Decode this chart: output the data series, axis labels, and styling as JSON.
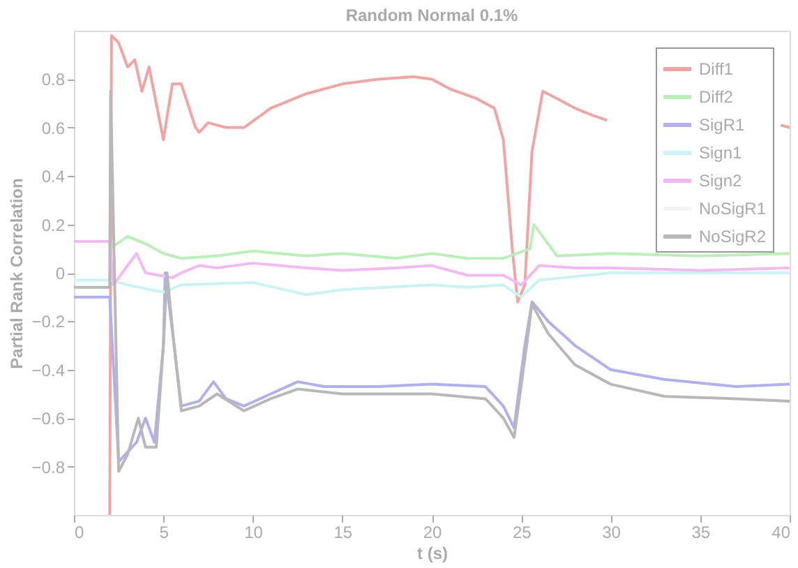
{
  "chart_data": {
    "type": "line",
    "title": "Random Normal 0.1%",
    "xlabel": "t (s)",
    "ylabel": "Partial Rank Correlation",
    "xlim": [
      0,
      40
    ],
    "xticks": [
      0,
      5,
      10,
      15,
      20,
      25,
      30,
      35,
      40
    ],
    "ylim": [
      -1,
      1
    ],
    "yticks": [
      -0.8,
      -0.6,
      -0.4,
      -0.2,
      0,
      0.2,
      0.4,
      0.6,
      0.8
    ],
    "grid": false,
    "legend": "top right",
    "line_style": "solid",
    "marker": "none",
    "series": [
      {
        "name": "Diff1",
        "color": "#f4a3a3",
        "x": [
          2,
          2.1,
          2.5,
          3,
          3.4,
          3.8,
          4.2,
          4.6,
          5,
          5.5,
          6,
          6.8,
          7,
          7.5,
          8.5,
          9.5,
          11,
          13,
          15,
          17,
          19,
          20,
          21,
          22.5,
          23.5,
          24,
          24.5,
          24.8,
          25.2,
          25.6,
          26.2,
          27,
          28,
          29,
          29.8,
          35,
          39.5,
          40
        ],
        "values": [
          -1,
          0.98,
          0.95,
          0.85,
          0.88,
          0.75,
          0.85,
          0.7,
          0.55,
          0.78,
          0.78,
          0.6,
          0.58,
          0.62,
          0.6,
          0.6,
          0.68,
          0.74,
          0.78,
          0.8,
          0.81,
          0.8,
          0.76,
          0.72,
          0.68,
          0.55,
          0.1,
          -0.12,
          -0.05,
          0.5,
          0.75,
          0.72,
          0.68,
          0.65,
          0.63,
          null,
          0.61,
          0.6
        ]
      },
      {
        "name": "Diff2",
        "color": "#b8f0b8",
        "x": [
          2,
          3,
          4,
          5,
          6,
          8,
          10,
          13,
          15,
          18,
          20,
          22,
          24,
          25.5,
          25.7,
          27,
          30,
          35,
          40
        ],
        "values": [
          0.1,
          0.15,
          0.12,
          0.08,
          0.06,
          0.07,
          0.09,
          0.07,
          0.08,
          0.06,
          0.08,
          0.06,
          0.06,
          0.1,
          0.2,
          0.07,
          0.08,
          0.07,
          0.08
        ]
      },
      {
        "name": "SigR1",
        "color": "#b0b0f0",
        "x": [
          0,
          2,
          2.5,
          3.5,
          4,
          4.5,
          5,
          5.1,
          5.6,
          6,
          7,
          7.8,
          8.5,
          9.5,
          11,
          12.5,
          14,
          17,
          20,
          23,
          24,
          24.6,
          25.2,
          25.6,
          26.5,
          28,
          30,
          33,
          37,
          40
        ],
        "values": [
          -0.1,
          -0.1,
          -0.78,
          -0.7,
          -0.6,
          -0.7,
          -0.3,
          0,
          -0.3,
          -0.55,
          -0.53,
          -0.45,
          -0.52,
          -0.55,
          -0.5,
          -0.45,
          -0.47,
          -0.47,
          -0.46,
          -0.47,
          -0.55,
          -0.64,
          -0.3,
          -0.12,
          -0.2,
          -0.3,
          -0.4,
          -0.44,
          -0.47,
          -0.46
        ]
      },
      {
        "name": "Sign1",
        "color": "#c8f4f4",
        "x": [
          0,
          2,
          3,
          5,
          6,
          10,
          13,
          15,
          20,
          22,
          24,
          25,
          26,
          30,
          35,
          40
        ],
        "values": [
          -0.03,
          -0.03,
          -0.05,
          -0.08,
          -0.05,
          -0.04,
          -0.09,
          -0.07,
          -0.05,
          -0.06,
          -0.05,
          -0.1,
          -0.03,
          0,
          0,
          0
        ]
      },
      {
        "name": "Sign2",
        "color": "#f4b8f4",
        "x": [
          0,
          2,
          2.2,
          3.5,
          4,
          5.5,
          6,
          7,
          8,
          10,
          13,
          15,
          18,
          20,
          22,
          24,
          25,
          26,
          28,
          30,
          35,
          40
        ],
        "values": [
          0.13,
          0.13,
          -0.05,
          0.08,
          0,
          -0.02,
          0,
          0.03,
          0.02,
          0.04,
          0.02,
          0.01,
          0.02,
          0.03,
          -0.01,
          -0.01,
          -0.05,
          0.03,
          0.02,
          0.02,
          0.01,
          0.02
        ]
      },
      {
        "name": "NoSigR1",
        "color": "#f4f4f4"
      },
      {
        "name": "NoSigR2",
        "color": "#b8b8b8",
        "x": [
          0,
          2,
          2.05,
          2.5,
          3,
          3.6,
          4,
          4.6,
          5,
          5.2,
          5.6,
          6,
          7,
          8,
          9.5,
          11,
          12.5,
          15,
          20,
          23,
          24,
          24.6,
          25.3,
          25.6,
          26.5,
          28,
          30,
          33,
          37,
          40
        ],
        "values": [
          -0.06,
          -0.06,
          0.75,
          -0.82,
          -0.75,
          -0.6,
          -0.72,
          -0.72,
          -0.3,
          0,
          -0.3,
          -0.57,
          -0.55,
          -0.5,
          -0.57,
          -0.52,
          -0.48,
          -0.5,
          -0.5,
          -0.52,
          -0.6,
          -0.68,
          -0.3,
          -0.13,
          -0.25,
          -0.38,
          -0.46,
          -0.51,
          -0.52,
          -0.53
        ]
      }
    ]
  }
}
